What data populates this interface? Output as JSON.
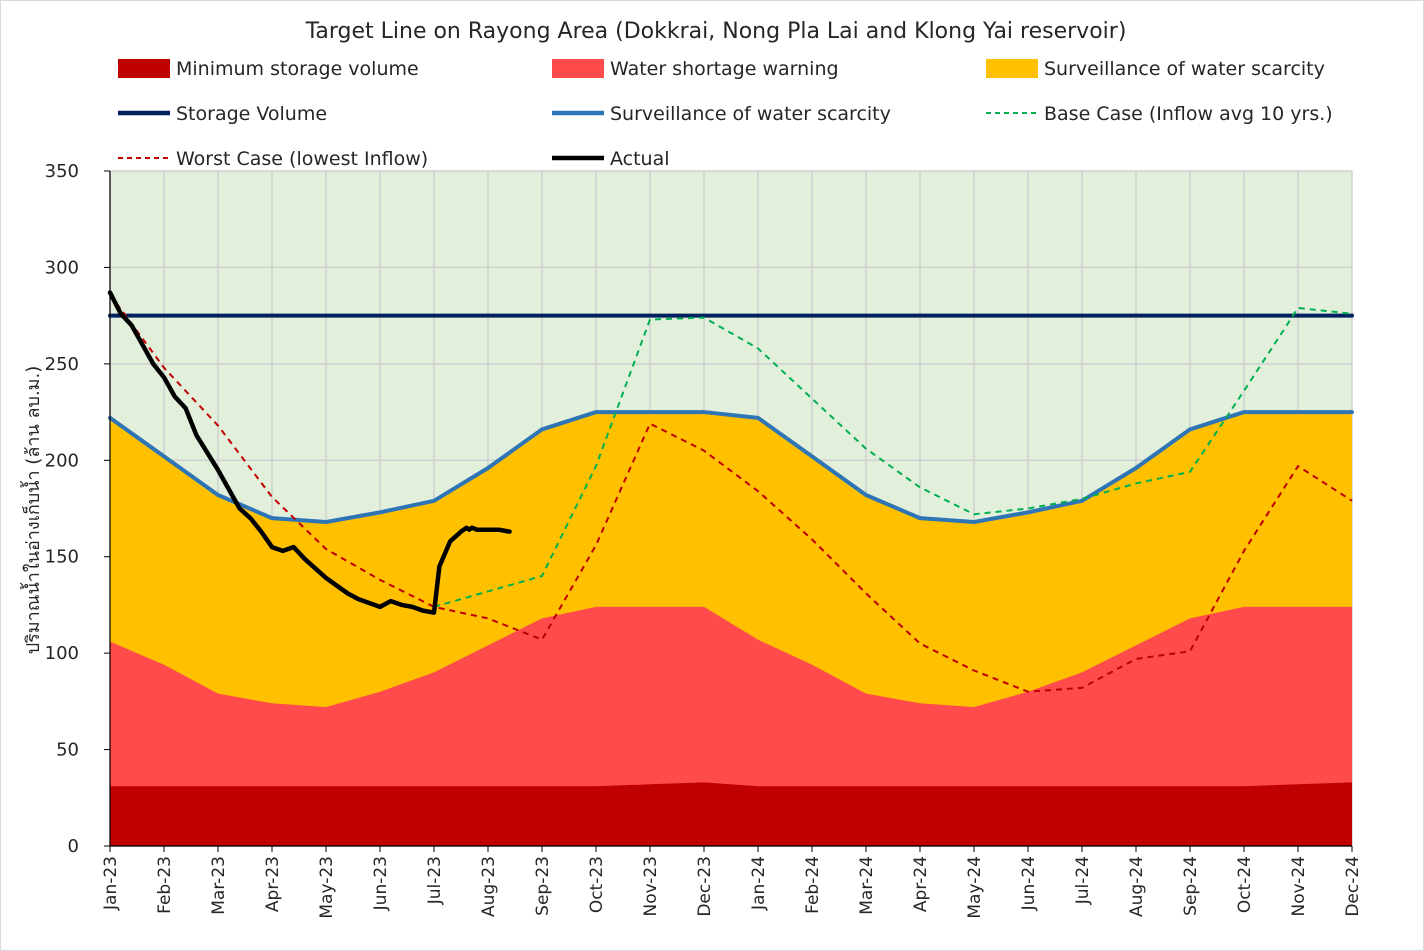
{
  "chart_data": {
    "type": "area",
    "title": "Target Line on Rayong Area (Dokkrai, Nong Pla Lai and Klong Yai reservoir)",
    "ylabel": "ปริมาณน้ำในอ่างเก็บน้ำ (ล้าน ลบ.ม.)",
    "xlabel": "",
    "ylim": [
      0,
      350
    ],
    "yticks": [
      0,
      50,
      100,
      150,
      200,
      250,
      300,
      350
    ],
    "categories": [
      "Jan-23",
      "Feb-23",
      "Mar-23",
      "Apr-23",
      "May-23",
      "Jun-23",
      "Jul-23",
      "Aug-23",
      "Sep-23",
      "Oct-23",
      "Nov-23",
      "Dec-23",
      "Jan-24",
      "Feb-24",
      "Mar-24",
      "Apr-24",
      "May-24",
      "Jun-24",
      "Jul-24",
      "Aug-24",
      "Sep-24",
      "Oct-24",
      "Nov-24",
      "Dec-24"
    ],
    "grid": true,
    "background_zone": {
      "name": "safe zone",
      "color": "#e2efda"
    },
    "areas": [
      {
        "name": "Surveillance of water scarcity",
        "color": "#ffc000",
        "values": [
          222,
          202,
          182,
          170,
          168,
          173,
          179,
          196,
          216,
          225,
          225,
          225,
          222,
          202,
          182,
          170,
          168,
          173,
          179,
          196,
          216,
          225,
          225,
          225
        ]
      },
      {
        "name": "Water shortage warning",
        "color": "#ff4b4b",
        "values": [
          106,
          94,
          79,
          74,
          72,
          80,
          90,
          104,
          118,
          124,
          124,
          124,
          107,
          94,
          79,
          74,
          72,
          80,
          90,
          104,
          118,
          124,
          124,
          124
        ]
      },
      {
        "name": "Minimum storage volume",
        "color": "#c00000",
        "values": [
          31,
          31,
          31,
          31,
          31,
          31,
          31,
          31,
          31,
          31,
          32,
          33,
          31,
          31,
          31,
          31,
          31,
          31,
          31,
          31,
          31,
          31,
          32,
          33
        ]
      }
    ],
    "lines": [
      {
        "name": "Storage Volume",
        "color": "#002060",
        "style": "solid",
        "values": [
          275,
          275,
          275,
          275,
          275,
          275,
          275,
          275,
          275,
          275,
          275,
          275,
          275,
          275,
          275,
          275,
          275,
          275,
          275,
          275,
          275,
          275,
          275,
          275
        ]
      },
      {
        "name": "Surveillance of water scarcity",
        "color": "#2e75b6",
        "style": "solid",
        "values": [
          222,
          202,
          182,
          170,
          168,
          173,
          179,
          196,
          216,
          225,
          225,
          225,
          222,
          202,
          182,
          170,
          168,
          173,
          179,
          196,
          216,
          225,
          225,
          225
        ]
      },
      {
        "name": "Base Case (Inflow avg 10 yrs.)",
        "color": "#00b050",
        "style": "dashed",
        "x": [
          6,
          7,
          8,
          9,
          10,
          11,
          12,
          13,
          14,
          15,
          16,
          17,
          18,
          19,
          20,
          21,
          22,
          23
        ],
        "values": [
          124,
          132,
          140,
          197,
          273,
          274,
          258,
          232,
          206,
          186,
          172,
          175,
          180,
          188,
          194,
          236,
          279,
          276
        ]
      },
      {
        "name": "Worst Case (lowest Inflow)",
        "color": "#c00000",
        "style": "dashed",
        "x": [
          0,
          1,
          2,
          3,
          4,
          5,
          6,
          7,
          8,
          9,
          10,
          11,
          12,
          13,
          14,
          15,
          16,
          17,
          18,
          19,
          20,
          21,
          22,
          23
        ],
        "values": [
          286,
          248,
          218,
          181,
          154,
          138,
          124,
          118,
          107,
          156,
          219,
          205,
          184,
          159,
          131,
          105,
          91,
          80,
          82,
          97,
          101,
          153,
          197,
          179
        ]
      },
      {
        "name": "Actual",
        "color": "#000000",
        "style": "solid",
        "x": [
          0,
          0.2,
          0.4,
          0.6,
          0.8,
          1.0,
          1.2,
          1.4,
          1.6,
          1.8,
          2.0,
          2.2,
          2.4,
          2.6,
          2.8,
          3.0,
          3.2,
          3.4,
          3.6,
          3.8,
          4.0,
          4.2,
          4.4,
          4.6,
          4.8,
          5.0,
          5.2,
          5.4,
          5.6,
          5.8,
          6.0,
          6.1,
          6.3,
          6.5,
          6.6,
          6.65,
          6.7,
          6.8,
          7.0,
          7.2,
          7.4
        ],
        "values": [
          287,
          276,
          270,
          260,
          250,
          243,
          233,
          227,
          213,
          204,
          195,
          185,
          175,
          170,
          163,
          155,
          153,
          155,
          149,
          144,
          139,
          135,
          131,
          128,
          126,
          124,
          127,
          125,
          124,
          122,
          121,
          145,
          158,
          163,
          165,
          164,
          165,
          164,
          164,
          164,
          163
        ]
      }
    ],
    "legend": [
      {
        "label": "Minimum storage volume",
        "kind": "box",
        "color": "#c00000"
      },
      {
        "label": "Water shortage warning",
        "kind": "box",
        "color": "#ff4b4b"
      },
      {
        "label": "Surveillance of water scarcity",
        "kind": "box",
        "color": "#ffc000"
      },
      {
        "label": "Storage Volume",
        "kind": "line",
        "color": "#002060"
      },
      {
        "label": "Surveillance of water scarcity",
        "kind": "line",
        "color": "#2e75b6"
      },
      {
        "label": "Base Case (Inflow avg 10 yrs.)",
        "kind": "dash",
        "color": "#00b050"
      },
      {
        "label": "Worst Case (lowest Inflow)",
        "kind": "dash",
        "color": "#c00000"
      },
      {
        "label": "Actual",
        "kind": "line",
        "color": "#000000"
      }
    ]
  }
}
